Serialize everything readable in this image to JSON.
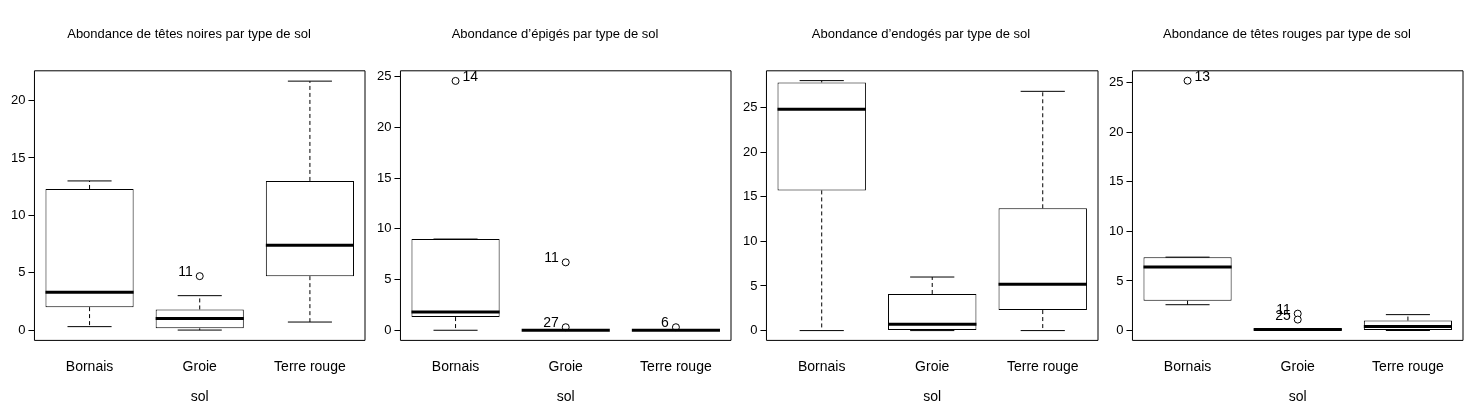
{
  "chart_data": [
    {
      "type": "box",
      "title": "Abondance de têtes noires par type de sol",
      "xlabel": "sol",
      "categories": [
        "Bornais",
        "Groie",
        "Terre rouge"
      ],
      "ylim": [
        -0.9,
        22.6
      ],
      "yticks": [
        0,
        5,
        10,
        15,
        20
      ],
      "grid": false,
      "legend": false,
      "color": "#000000",
      "boxes": [
        {
          "low": 0.3,
          "q1": 2.0,
          "median": 3.3,
          "q3": 12.3,
          "high": 13.0
        },
        {
          "low": 0,
          "q1": 0.15,
          "median": 1.0,
          "q3": 1.8,
          "high": 3.0,
          "outliers": [
            4.7
          ]
        },
        {
          "low": 0.7,
          "q1": 4.7,
          "median": 7.4,
          "q3": 13.0,
          "high": 21.7
        }
      ],
      "annotations": [
        "11"
      ]
    },
    {
      "type": "box",
      "title": "Abondance d’épigés par type de sol",
      "xlabel": "sol",
      "categories": [
        "Bornais",
        "Groie",
        "Terre rouge"
      ],
      "ylim": [
        -1.0,
        25.6
      ],
      "yticks": [
        0,
        5,
        10,
        15,
        20,
        25
      ],
      "grid": false,
      "legend": false,
      "color": "#000000",
      "boxes": [
        {
          "low": 0,
          "q1": 1.3,
          "median": 1.8,
          "q3": 9.0,
          "high": 9.0,
          "outliers": [
            24.6
          ]
        },
        {
          "low": 0,
          "q1": 0,
          "median": 0,
          "q3": 0,
          "high": 0,
          "outliers": [
            6.7,
            0.3
          ]
        },
        {
          "low": 0,
          "q1": 0,
          "median": 0,
          "q3": 0,
          "high": 0,
          "outliers": [
            0.3
          ]
        }
      ],
      "annotations": [
        "14",
        "11",
        "27",
        "6"
      ]
    },
    {
      "type": "box",
      "title": "Abondance d’endogés par type de sol",
      "xlabel": "sol",
      "categories": [
        "Bornais",
        "Groie",
        "Terre rouge"
      ],
      "ylim": [
        -1.1,
        29.1
      ],
      "yticks": [
        0,
        5,
        10,
        15,
        20,
        25
      ],
      "grid": false,
      "legend": false,
      "color": "#000000",
      "boxes": [
        {
          "low": 0,
          "q1": 15.7,
          "median": 24.8,
          "q3": 27.8,
          "high": 28.0
        },
        {
          "low": 0,
          "q1": 0,
          "median": 0.7,
          "q3": 4.1,
          "high": 6.0
        },
        {
          "low": 0,
          "q1": 2.3,
          "median": 5.2,
          "q3": 13.7,
          "high": 26.8
        }
      ]
    },
    {
      "type": "box",
      "title": "Abondance de têtes rouges par type de sol",
      "xlabel": "sol",
      "categories": [
        "Bornais",
        "Groie",
        "Terre rouge"
      ],
      "ylim": [
        -1.0,
        26.2
      ],
      "yticks": [
        0,
        5,
        10,
        15,
        20,
        25
      ],
      "grid": false,
      "legend": false,
      "color": "#000000",
      "boxes": [
        {
          "low": 2.6,
          "q1": 3.0,
          "median": 6.4,
          "q3": 7.4,
          "high": 7.4,
          "outliers": [
            25.2
          ]
        },
        {
          "low": 0,
          "q1": 0,
          "median": 0.1,
          "q3": 0.2,
          "high": 0.2,
          "outliers": [
            1.7,
            1.1
          ]
        },
        {
          "low": 0,
          "q1": 0,
          "median": 0.4,
          "q3": 1.0,
          "high": 1.6
        }
      ],
      "annotations": [
        "13",
        "11",
        "25"
      ]
    }
  ]
}
